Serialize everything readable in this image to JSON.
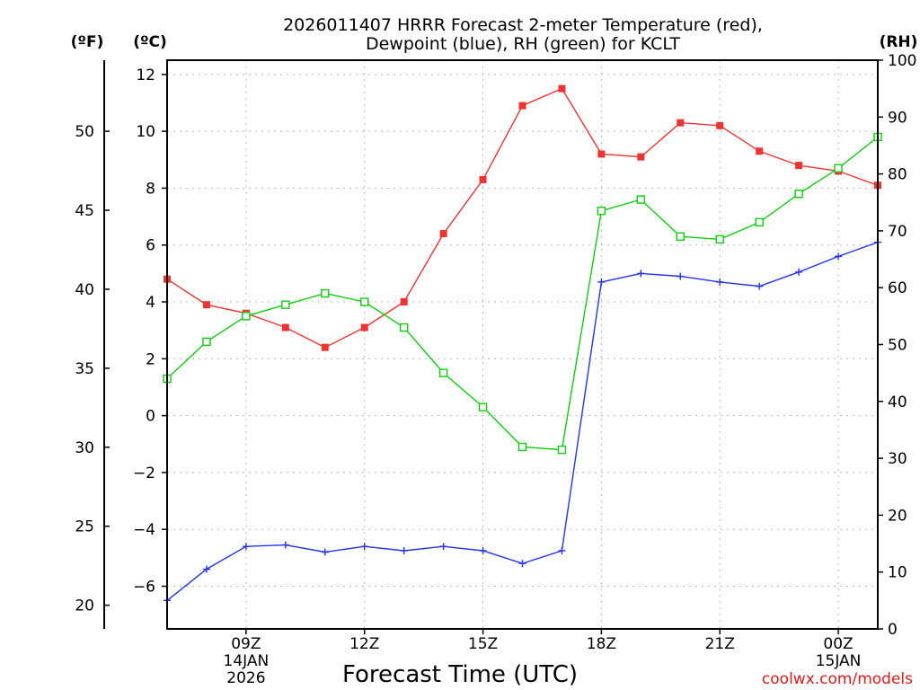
{
  "chart_data": {
    "type": "line",
    "title_line1": "2026011407 HRRR Forecast 2-meter Temperature (red),",
    "title_line2": "Dewpoint (blue), RH (green) for KCLT",
    "xlabel": "Forecast Time (UTC)",
    "credit": "coolwx.com/models",
    "unit_f": "(ºF)",
    "unit_c": "(ºC)",
    "unit_rh": "(RH)",
    "x_hours": [
      7,
      8,
      9,
      10,
      11,
      12,
      13,
      14,
      15,
      16,
      17,
      18,
      19,
      20,
      21,
      22,
      23,
      24,
      25
    ],
    "x_ticks": [
      {
        "hour": 9,
        "label": "09Z",
        "label2": "14JAN",
        "label3": "2026"
      },
      {
        "hour": 12,
        "label": "12Z",
        "label2": "",
        "label3": ""
      },
      {
        "hour": 15,
        "label": "15Z",
        "label2": "",
        "label3": ""
      },
      {
        "hour": 18,
        "label": "18Z",
        "label2": "",
        "label3": ""
      },
      {
        "hour": 21,
        "label": "21Z",
        "label2": "",
        "label3": ""
      },
      {
        "hour": 24,
        "label": "00Z",
        "label2": "15JAN",
        "label3": ""
      }
    ],
    "xlim": [
      7,
      25
    ],
    "ylim_c": [
      -7.5,
      12.5
    ],
    "ylim_rh": [
      0,
      100
    ],
    "yticks_c": [
      12,
      10,
      8,
      6,
      4,
      2,
      0,
      -2,
      -4,
      -6
    ],
    "yticks_c_labels": [
      "12",
      "10",
      "8",
      "6",
      "4",
      "2",
      "0",
      "−2",
      "−4",
      "−6"
    ],
    "yticks_f": [
      50,
      45,
      40,
      35,
      30,
      25,
      20
    ],
    "yticks_f_labels": [
      "50",
      "45",
      "40",
      "35",
      "30",
      "25",
      "20"
    ],
    "yticks_rh": [
      100,
      90,
      80,
      70,
      60,
      50,
      40,
      30,
      20,
      10,
      0
    ],
    "yticks_rh_labels": [
      "100",
      "90",
      "80",
      "70",
      "60",
      "50",
      "40",
      "30",
      "20",
      "10",
      "0"
    ],
    "series": [
      {
        "name": "Temperature",
        "unit": "C",
        "color": "#ee3333",
        "marker": "filled-square",
        "values": [
          4.8,
          3.9,
          3.6,
          3.1,
          2.4,
          3.1,
          4.0,
          6.4,
          8.3,
          10.9,
          11.5,
          9.2,
          9.1,
          10.3,
          10.2,
          9.3,
          8.8,
          8.6,
          8.1
        ]
      },
      {
        "name": "Dewpoint",
        "unit": "C",
        "color": "#2233ee",
        "marker": "plus",
        "values": [
          -6.5,
          -5.4,
          -4.6,
          -4.55,
          -4.8,
          -4.6,
          -4.75,
          -4.6,
          -4.75,
          -5.2,
          -4.75,
          4.7,
          5.0,
          4.9,
          4.7,
          4.55,
          5.05,
          5.6,
          6.1
        ]
      },
      {
        "name": "RH",
        "unit": "%",
        "color": "#11cc11",
        "marker": "open-square",
        "values": [
          44,
          50.5,
          55,
          57,
          59,
          57.5,
          53,
          45,
          39,
          32,
          31.5,
          73.5,
          75.5,
          69,
          68.5,
          71.5,
          76.5,
          81,
          86.5
        ]
      }
    ]
  }
}
